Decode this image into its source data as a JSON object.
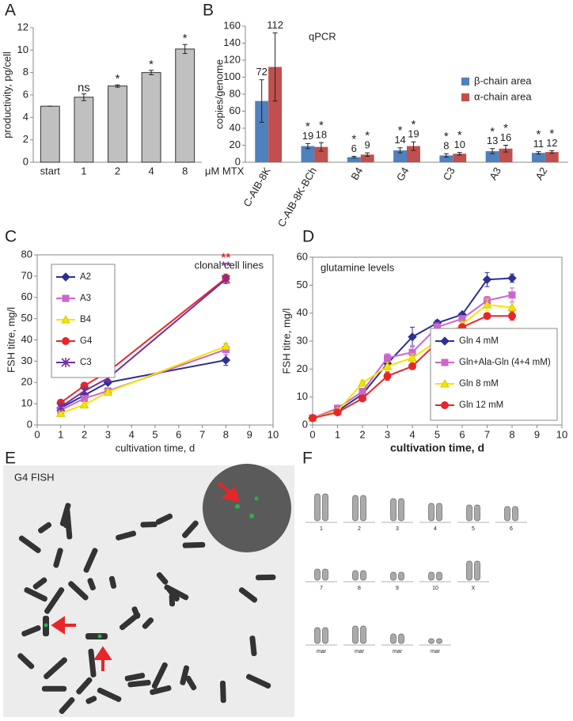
{
  "chart_data": [
    {
      "panel": "A",
      "type": "bar",
      "ylabel": "productivity, pg/cell",
      "xlabel": "μM MTX",
      "categories": [
        "start",
        "1",
        "2",
        "4",
        "8"
      ],
      "values": [
        5,
        5.8,
        6.8,
        8,
        10.1
      ],
      "errors": [
        0,
        0.3,
        0.1,
        0.2,
        0.4
      ],
      "significance": [
        null,
        "ns",
        "*",
        "*",
        "*"
      ],
      "color": "#c0c0c0",
      "ylim": [
        0,
        12
      ],
      "yticks": [
        0,
        2,
        4,
        6,
        8,
        10,
        12
      ],
      "grid": false,
      "frame": false
    },
    {
      "panel": "B",
      "type": "bar",
      "title": "qPCR",
      "ylabel": "copies/genome",
      "categories": [
        "C-AIB-8K",
        "C-AIB-8K-BCh",
        "B4",
        "G4",
        "C3",
        "A3",
        "A2"
      ],
      "series": [
        {
          "name": "β-chain area",
          "color": "#4f81bd",
          "values": [
            72,
            19,
            6,
            14,
            8,
            13,
            11
          ],
          "errors": [
            25,
            3,
            1,
            3,
            2,
            3,
            1.5
          ],
          "significance": [
            null,
            "*",
            "*",
            "*",
            "*",
            "*",
            "*"
          ]
        },
        {
          "name": "α-chain area",
          "color": "#c0504d",
          "values": [
            112,
            18,
            9,
            19,
            10,
            16,
            12
          ],
          "errors": [
            40,
            5,
            2,
            5,
            1.5,
            4,
            1.5
          ],
          "significance": [
            null,
            "*",
            "*",
            "*",
            "*",
            "*",
            "*"
          ]
        }
      ],
      "data_labels": true,
      "legend": "center right",
      "ylim": [
        0,
        160
      ],
      "yticks": [
        0,
        20,
        40,
        60,
        80,
        100,
        120,
        140,
        160
      ],
      "grid": false,
      "frame": false
    },
    {
      "panel": "C",
      "type": "line",
      "title": "clonal cell lines",
      "xlabel": "cultivation time, d",
      "ylabel": "FSH titre, mg/l",
      "x": [
        1,
        2,
        3,
        8
      ],
      "series": [
        {
          "name": "A2",
          "color": "#2e3192",
          "marker": "diamond",
          "values": [
            8,
            14,
            20,
            30.5
          ],
          "errors": [
            1,
            1,
            1,
            2.5
          ]
        },
        {
          "name": "A3",
          "color": "#cc66cc",
          "marker": "square",
          "values": [
            7,
            12.5,
            16,
            35.5
          ],
          "errors": [
            1,
            1,
            1.5,
            2.5
          ]
        },
        {
          "name": "B4",
          "color": "#f2e600",
          "marker": "triangle",
          "values": [
            5.5,
            9.5,
            15.5,
            37
          ],
          "errors": [
            0.5,
            1,
            1,
            1.5
          ]
        },
        {
          "name": "G4",
          "color": "#e8262a",
          "marker": "circle",
          "values": [
            10.5,
            18.5,
            25,
            69
          ],
          "errors": [
            1,
            1,
            3.5,
            2
          ],
          "annotation": "**"
        },
        {
          "name": "C3",
          "color": "#7030a0",
          "marker": "star",
          "values": [
            8.5,
            16,
            22,
            68.5
          ],
          "errors": [
            1,
            1,
            1.5,
            2
          ],
          "annotation": "**"
        }
      ],
      "legend": "upper left",
      "xlim": [
        0,
        10
      ],
      "xticks": [
        0,
        1,
        2,
        3,
        4,
        5,
        6,
        7,
        8,
        9,
        10
      ],
      "ylim": [
        0,
        80
      ],
      "yticks": [
        0,
        10,
        20,
        30,
        40,
        50,
        60,
        70,
        80
      ],
      "grid": false,
      "frame": true
    },
    {
      "panel": "D",
      "type": "line",
      "title": "glutamine levels",
      "xlabel": "cultivation time, d",
      "ylabel": "FSH titre, mg/l",
      "x": [
        0,
        1,
        2,
        3,
        4,
        5,
        6,
        7,
        8
      ],
      "series": [
        {
          "name": "Gln 4 mM",
          "color": "#2e3192",
          "marker": "diamond",
          "values": [
            2.5,
            5,
            11,
            22,
            31.5,
            36.5,
            39.5,
            52,
            52.5
          ],
          "errors": [
            0.5,
            0.5,
            0.5,
            1.5,
            3.5,
            1,
            0.5,
            2.5,
            1.5
          ]
        },
        {
          "name": "Gln+Ala-Gln (4+4 mM)",
          "color": "#cc66cc",
          "marker": "square",
          "values": [
            2.5,
            6,
            12,
            24,
            26,
            35,
            38,
            44.5,
            46.5
          ],
          "errors": [
            0.5,
            0.5,
            0.5,
            1.5,
            2.5,
            1.5,
            1,
            1.5,
            2.5
          ]
        },
        {
          "name": "Gln 8 mM",
          "color": "#f2e600",
          "marker": "triangle",
          "values": [
            2.5,
            5,
            15,
            21,
            24,
            30,
            36,
            43,
            42
          ],
          "errors": [
            0.5,
            0.5,
            1,
            1.5,
            1.5,
            1,
            1,
            2,
            1.5
          ]
        },
        {
          "name": "Gln 12 mM",
          "color": "#e8262a",
          "marker": "circle",
          "values": [
            2.5,
            4.5,
            9.5,
            17.5,
            21,
            29.5,
            35,
            39,
            39
          ],
          "errors": [
            0.5,
            0.5,
            0.5,
            1.5,
            1,
            2.5,
            1,
            1,
            1.5
          ]
        }
      ],
      "legend": "lower right",
      "xlim": [
        0,
        10
      ],
      "xticks": [
        0,
        1,
        2,
        3,
        4,
        5,
        6,
        7,
        8,
        9,
        10
      ],
      "ylim": [
        0,
        60
      ],
      "yticks": [
        0,
        10,
        20,
        30,
        40,
        50,
        60
      ],
      "grid": false,
      "frame": true
    }
  ],
  "panels": {
    "E": {
      "letter": "E",
      "label": "G4 FISH"
    },
    "F": {
      "letter": "F",
      "karyotype_labels": [
        [
          "1",
          "2",
          "3",
          "4",
          "5",
          "6"
        ],
        [
          "7",
          "8",
          "9",
          "10",
          "X"
        ],
        [
          "mar",
          "mar",
          "mar",
          "mar"
        ]
      ]
    }
  }
}
